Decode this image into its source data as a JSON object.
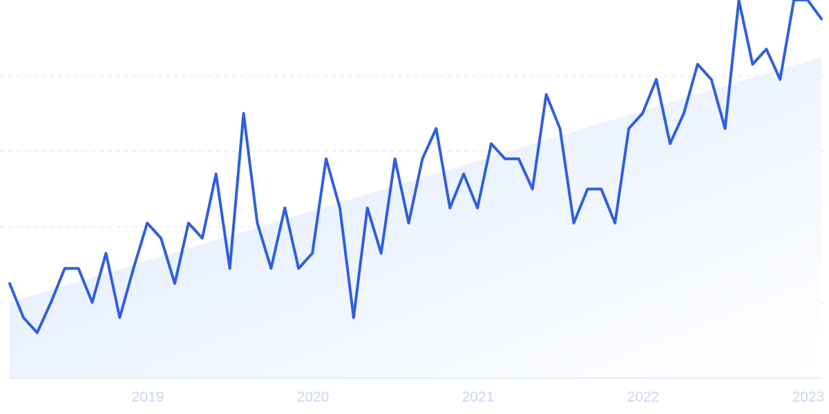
{
  "chart_data": {
    "type": "line",
    "title": "",
    "xlabel": "",
    "ylabel": "",
    "x_ticks": [
      "2019",
      "2020",
      "2021",
      "2022",
      "2023"
    ],
    "ylim": [
      0,
      100
    ],
    "y_gridlines": [
      20,
      40,
      60,
      80
    ],
    "grid": true,
    "trend_area": {
      "start": 20,
      "end": 85
    },
    "series": [
      {
        "values": [
          25,
          16,
          12,
          20,
          29,
          29,
          20,
          33,
          16,
          29,
          41,
          37,
          25,
          41,
          37,
          54,
          29,
          70,
          41,
          29,
          45,
          29,
          33,
          58,
          45,
          16,
          45,
          33,
          58,
          41,
          58,
          66,
          45,
          54,
          45,
          62,
          58,
          58,
          50,
          75,
          66,
          41,
          50,
          50,
          41,
          66,
          70,
          79,
          62,
          70,
          83,
          79,
          66,
          100,
          83,
          87,
          79,
          100,
          100,
          95
        ]
      }
    ]
  },
  "colors": {
    "line": "#2f5fdd",
    "area_top": "#dde9fb",
    "area_bottom": "#ffffff",
    "grid": "#d9e6f3",
    "tick_text": "#c8d6f1"
  }
}
